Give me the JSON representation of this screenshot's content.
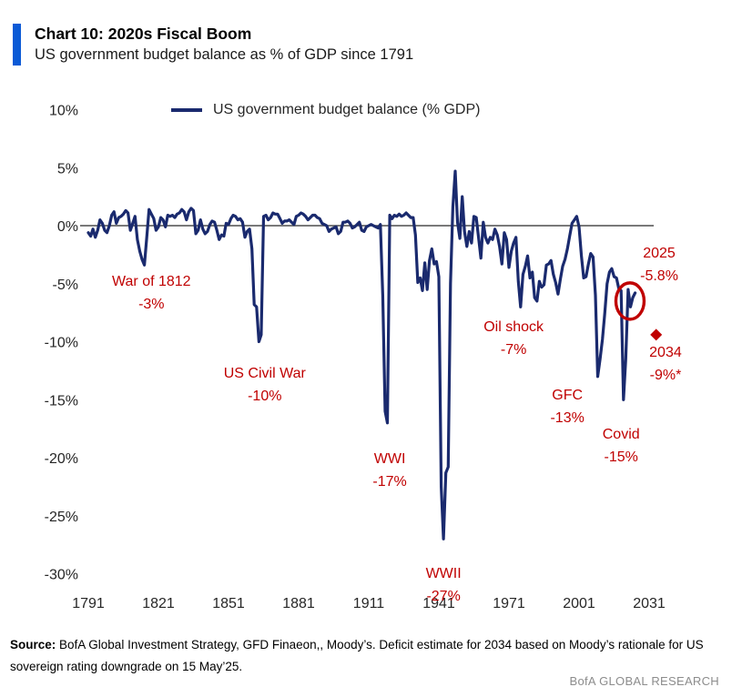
{
  "header": {
    "title": "Chart 10: 2020s Fiscal Boom",
    "subtitle": "US government budget balance as % of GDP since 1791",
    "accent_color": "#0b5ad6"
  },
  "legend": {
    "label": "US government budget balance (% GDP)"
  },
  "chart_data": {
    "type": "line",
    "title": "Chart 10: 2020s Fiscal Boom",
    "subtitle": "US government budget balance as % of GDP since 1791",
    "xlabel": "",
    "ylabel": "",
    "xlim": [
      1791,
      2031
    ],
    "ylim": [
      -30,
      10
    ],
    "grid": false,
    "zero_line": true,
    "legend_position": "top",
    "xticks": [
      1791,
      1821,
      1851,
      1881,
      1911,
      1941,
      1971,
      2001,
      2031
    ],
    "yticks": [
      10,
      5,
      0,
      -5,
      -10,
      -15,
      -20,
      -25,
      -30
    ],
    "ytick_suffix": "%",
    "annotation_color": "#c00000",
    "series": [
      {
        "name": "US government budget balance (% GDP)",
        "color": "#1a2a6e",
        "start_year": 1791,
        "end_year": 2025,
        "values": [
          -0.6,
          -0.9,
          -0.3,
          -1.0,
          -0.4,
          0.5,
          0.2,
          -0.4,
          -0.6,
          0.0,
          0.9,
          1.2,
          0.2,
          0.7,
          0.8,
          1.0,
          1.3,
          1.1,
          -0.4,
          0.2,
          0.8,
          -1.2,
          -2.2,
          -2.9,
          -3.4,
          -1.0,
          1.4,
          1.0,
          0.6,
          -0.4,
          -0.1,
          0.7,
          0.5,
          -0.1,
          0.9,
          0.8,
          0.9,
          0.7,
          1.0,
          1.1,
          1.4,
          1.2,
          0.5,
          1.2,
          1.5,
          1.3,
          -0.7,
          -0.4,
          0.5,
          -0.3,
          -0.7,
          -0.5,
          0.1,
          0.4,
          0.3,
          -0.4,
          -1.2,
          -0.8,
          -0.9,
          0.2,
          0.1,
          0.6,
          0.9,
          0.8,
          0.5,
          0.6,
          0.3,
          -1.0,
          -0.5,
          -0.3,
          -2.0,
          -6.8,
          -7.0,
          -10.0,
          -9.4,
          0.8,
          0.9,
          0.5,
          0.7,
          1.1,
          1.0,
          1.0,
          0.6,
          0.2,
          0.4,
          0.4,
          0.5,
          0.3,
          0.1,
          0.8,
          0.9,
          1.1,
          1.0,
          0.8,
          0.5,
          0.7,
          0.9,
          0.9,
          0.7,
          0.6,
          0.2,
          0.1,
          0.0,
          -0.5,
          -0.3,
          -0.2,
          -0.1,
          -0.7,
          -0.5,
          0.3,
          0.3,
          0.4,
          0.2,
          -0.2,
          -0.1,
          0.1,
          0.3,
          -0.4,
          -0.5,
          -0.1,
          0.0,
          0.1,
          0.0,
          -0.1,
          -0.2,
          0.1,
          -6.0,
          -16.0,
          -17.0,
          0.9,
          0.6,
          0.9,
          0.8,
          1.0,
          0.8,
          0.9,
          1.1,
          0.9,
          0.7,
          0.7,
          -0.8,
          -4.9,
          -4.5,
          -5.6,
          -3.2,
          -5.5,
          -3.0,
          -2.0,
          -3.3,
          -3.1,
          -4.4,
          -22.5,
          -27.0,
          -21.3,
          -20.8,
          -5.0,
          1.6,
          4.7,
          0.3,
          -1.1,
          2.5,
          -0.5,
          -1.8,
          -0.5,
          -1.5,
          0.8,
          0.7,
          -1.0,
          -2.8,
          0.3,
          -1.0,
          -1.5,
          -1.0,
          -1.2,
          -0.3,
          -0.8,
          -1.8,
          -3.3,
          -0.6,
          -1.2,
          -3.6,
          -2.2,
          -1.5,
          -1.0,
          -4.8,
          -7.0,
          -4.2,
          -3.5,
          -2.6,
          -4.5,
          -4.0,
          -6.2,
          -6.5,
          -4.8,
          -5.3,
          -5.1,
          -3.4,
          -3.3,
          -3.0,
          -4.2,
          -4.9,
          -5.9,
          -4.6,
          -3.5,
          -2.9,
          -2.0,
          -0.9,
          0.2,
          0.5,
          0.8,
          -0.1,
          -2.6,
          -4.5,
          -4.4,
          -3.3,
          -2.4,
          -2.7,
          -6.0,
          -13.0,
          -11.5,
          -9.8,
          -7.6,
          -5.0,
          -4.0,
          -3.7,
          -4.4,
          -4.5,
          -5.4,
          -5.6,
          -15.0,
          -11.5,
          -5.5,
          -7.0,
          -6.2,
          -5.8
        ]
      }
    ],
    "annotations": [
      {
        "label": "War of 1812",
        "value_label": "-3%",
        "year": 1818,
        "value": -5.8
      },
      {
        "label": "US Civil War",
        "value_label": "-10%",
        "year": 1866.5,
        "value": -13.7
      },
      {
        "label": "WWI",
        "value_label": "-17%",
        "year": 1920,
        "value": -21.1
      },
      {
        "label": "WWII",
        "value_label": "-27%",
        "year": 1943,
        "value": -31.0
      },
      {
        "label": "Oil shock",
        "value_label": "-7%",
        "year": 1973,
        "value": -9.7
      },
      {
        "label": "GFC",
        "value_label": "-13%",
        "year": 1996,
        "value": -15.6
      },
      {
        "label": "Covid",
        "value_label": "-15%",
        "year": 2019,
        "value": -19.0
      },
      {
        "label": "2025",
        "value_label": "-5.8%",
        "year": 2035.3,
        "value": -3.4
      },
      {
        "label": "2034",
        "value_label": "-9%*",
        "year": 2038,
        "value": -11.9
      }
    ],
    "highlight_circle": {
      "year": 2022.8,
      "value": -6.5
    },
    "estimate_marker": {
      "year": 2034,
      "value": -9.4,
      "estimate_for": "2034",
      "estimate_value": "-9%*"
    }
  },
  "footer": {
    "source_prefix": "Source:",
    "source_text": " BofA Global Investment Strategy, GFD Finaeon,, Moody’s. Deficit estimate for 2034 based on Moody’s rationale for US sovereign rating downgrade on 15 May’25.",
    "brand": "BofA GLOBAL RESEARCH"
  }
}
